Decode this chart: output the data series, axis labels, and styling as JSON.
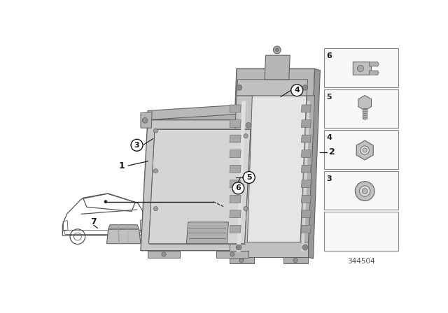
{
  "background_color": "#ffffff",
  "part_number": "344504",
  "figure_width": 6.4,
  "figure_height": 4.48,
  "dpi": 100,
  "gray_face": "#c0c0c0",
  "gray_light": "#d8d8d8",
  "gray_mid": "#a8a8a8",
  "gray_dark": "#787878",
  "gray_edge": "#606060",
  "line_color": "#1a1a1a",
  "circle_fill": "#ffffff",
  "sidebar_bg": "#f8f8f8",
  "sidebar_edge": "#888888"
}
